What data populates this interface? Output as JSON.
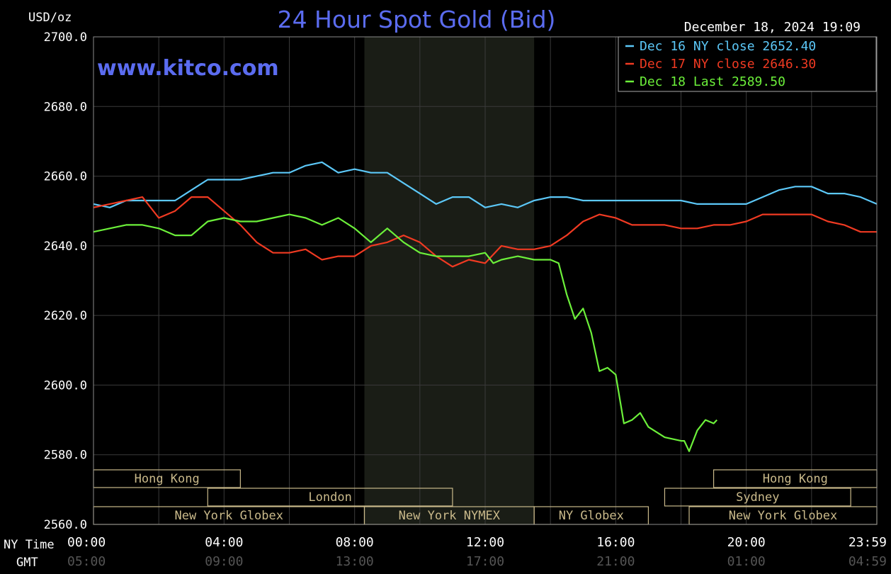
{
  "header": {
    "units": "USD/oz",
    "title": "24 Hour Spot Gold (Bid)",
    "timestamp": "December 18, 2024 19:09",
    "watermark": "www.kitco.com"
  },
  "rows": {
    "ny_time_label": "NY Time",
    "gmt_label": "GMT"
  },
  "colors": {
    "background": "#000000",
    "grid": "#3a3a3a",
    "axis_text": "#ffffff",
    "title": "#5b6cf0",
    "gmt_text": "#555555",
    "session_fill": "#1a1d16",
    "market_box": "#c9b98a",
    "dec16": "#5cc8f8",
    "dec17": "#f03a22",
    "dec18": "#6cf03a"
  },
  "markets": [
    {
      "label": "Hong Kong",
      "row": 0,
      "start": 0,
      "end": 4.5
    },
    {
      "label": "Hong Kong",
      "row": 0,
      "start": 19,
      "end": 24
    },
    {
      "label": "London",
      "row": 1,
      "start": 3.5,
      "end": 11
    },
    {
      "label": "Sydney",
      "row": 1,
      "start": 17.5,
      "end": 23.2
    },
    {
      "label": "New York Globex",
      "row": 2,
      "start": 0,
      "end": 8.3
    },
    {
      "label": "New York NYMEX",
      "row": 2,
      "start": 8.3,
      "end": 13.5
    },
    {
      "label": "NY Globex",
      "row": 2,
      "start": 13.5,
      "end": 17
    },
    {
      "label": "New York Globex",
      "row": 2,
      "start": 18.25,
      "end": 24
    }
  ],
  "chart_data": {
    "type": "line",
    "title": "24 Hour Spot Gold (Bid)",
    "ylabel": "USD/oz",
    "ylim": [
      2560,
      2700
    ],
    "xlim": [
      0,
      24
    ],
    "grid": true,
    "legend_position": "top-right",
    "y_ticks": [
      "2700.0",
      "2680.0",
      "2660.0",
      "2640.0",
      "2620.0",
      "2600.0",
      "2580.0",
      "2560.0"
    ],
    "x_ticks_ny": [
      "00:00",
      "04:00",
      "08:00",
      "12:00",
      "16:00",
      "20:00",
      "23:59"
    ],
    "x_ticks_gmt": [
      "05:00",
      "09:00",
      "13:00",
      "17:00",
      "21:00",
      "01:00",
      "04:59"
    ],
    "shaded_session": [
      8.3,
      13.5
    ],
    "series": [
      {
        "name": "Dec 16 NY close 2652.40",
        "color_key": "dec16",
        "x": [
          0,
          0.5,
          1,
          1.5,
          2,
          2.5,
          3,
          3.5,
          4,
          4.5,
          5,
          5.5,
          6,
          6.5,
          7,
          7.5,
          8,
          8.5,
          9,
          9.5,
          10,
          10.5,
          11,
          11.5,
          12,
          12.5,
          13,
          13.5,
          14,
          14.5,
          15,
          15.5,
          16,
          16.5,
          17,
          17.5,
          18,
          18.5,
          19,
          19.5,
          20,
          20.5,
          21,
          21.5,
          22,
          22.5,
          23,
          23.5,
          24
        ],
        "y": [
          2652,
          2651,
          2653,
          2653,
          2653,
          2653,
          2656,
          2659,
          2659,
          2659,
          2660,
          2661,
          2661,
          2663,
          2664,
          2661,
          2662,
          2661,
          2661,
          2658,
          2655,
          2652,
          2654,
          2654,
          2651,
          2652,
          2651,
          2653,
          2654,
          2654,
          2653,
          2653,
          2653,
          2653,
          2653,
          2653,
          2653,
          2652,
          2652,
          2652,
          2652,
          2654,
          2656,
          2657,
          2657,
          2655,
          2655,
          2654,
          2652
        ]
      },
      {
        "name": "Dec 17 NY close 2646.30",
        "color_key": "dec17",
        "x": [
          0,
          0.5,
          1,
          1.5,
          2,
          2.5,
          3,
          3.5,
          4,
          4.5,
          5,
          5.5,
          6,
          6.5,
          7,
          7.5,
          8,
          8.5,
          9,
          9.5,
          10,
          10.5,
          11,
          11.5,
          12,
          12.5,
          13,
          13.5,
          14,
          14.5,
          15,
          15.5,
          16,
          16.5,
          17,
          17.5,
          18,
          18.5,
          19,
          19.5,
          20,
          20.5,
          21,
          21.5,
          22,
          22.5,
          23,
          23.5,
          24
        ],
        "y": [
          2651,
          2652,
          2653,
          2654,
          2648,
          2650,
          2654,
          2654,
          2650,
          2646,
          2641,
          2638,
          2638,
          2639,
          2636,
          2637,
          2637,
          2640,
          2641,
          2643,
          2641,
          2637,
          2634,
          2636,
          2635,
          2640,
          2639,
          2639,
          2640,
          2643,
          2647,
          2649,
          2648,
          2646,
          2646,
          2646,
          2645,
          2645,
          2646,
          2646,
          2647,
          2649,
          2649,
          2649,
          2649,
          2647,
          2646,
          2644,
          2644
        ]
      },
      {
        "name": "Dec 18 Last 2589.50",
        "color_key": "dec18",
        "x": [
          0,
          0.5,
          1,
          1.5,
          2,
          2.5,
          3,
          3.5,
          4,
          4.5,
          5,
          5.5,
          6,
          6.5,
          7,
          7.5,
          8,
          8.5,
          9,
          9.5,
          10,
          10.5,
          11,
          11.5,
          12,
          12.25,
          12.5,
          13,
          13.5,
          14,
          14.25,
          14.5,
          14.75,
          15,
          15.25,
          15.5,
          15.75,
          16,
          16.25,
          16.5,
          16.75,
          17,
          17.5,
          18,
          18.1,
          18.25,
          18.5,
          18.75,
          19,
          19.1
        ],
        "y": [
          2644,
          2645,
          2646,
          2646,
          2645,
          2643,
          2643,
          2647,
          2648,
          2647,
          2647,
          2648,
          2649,
          2648,
          2646,
          2648,
          2645,
          2641,
          2645,
          2641,
          2638,
          2637,
          2637,
          2637,
          2638,
          2635,
          2636,
          2637,
          2636,
          2636,
          2635,
          2626,
          2619,
          2622,
          2615,
          2604,
          2605,
          2603,
          2589,
          2590,
          2592,
          2588,
          2585,
          2584,
          2584,
          2581,
          2587,
          2590,
          2589,
          2590
        ]
      }
    ]
  }
}
